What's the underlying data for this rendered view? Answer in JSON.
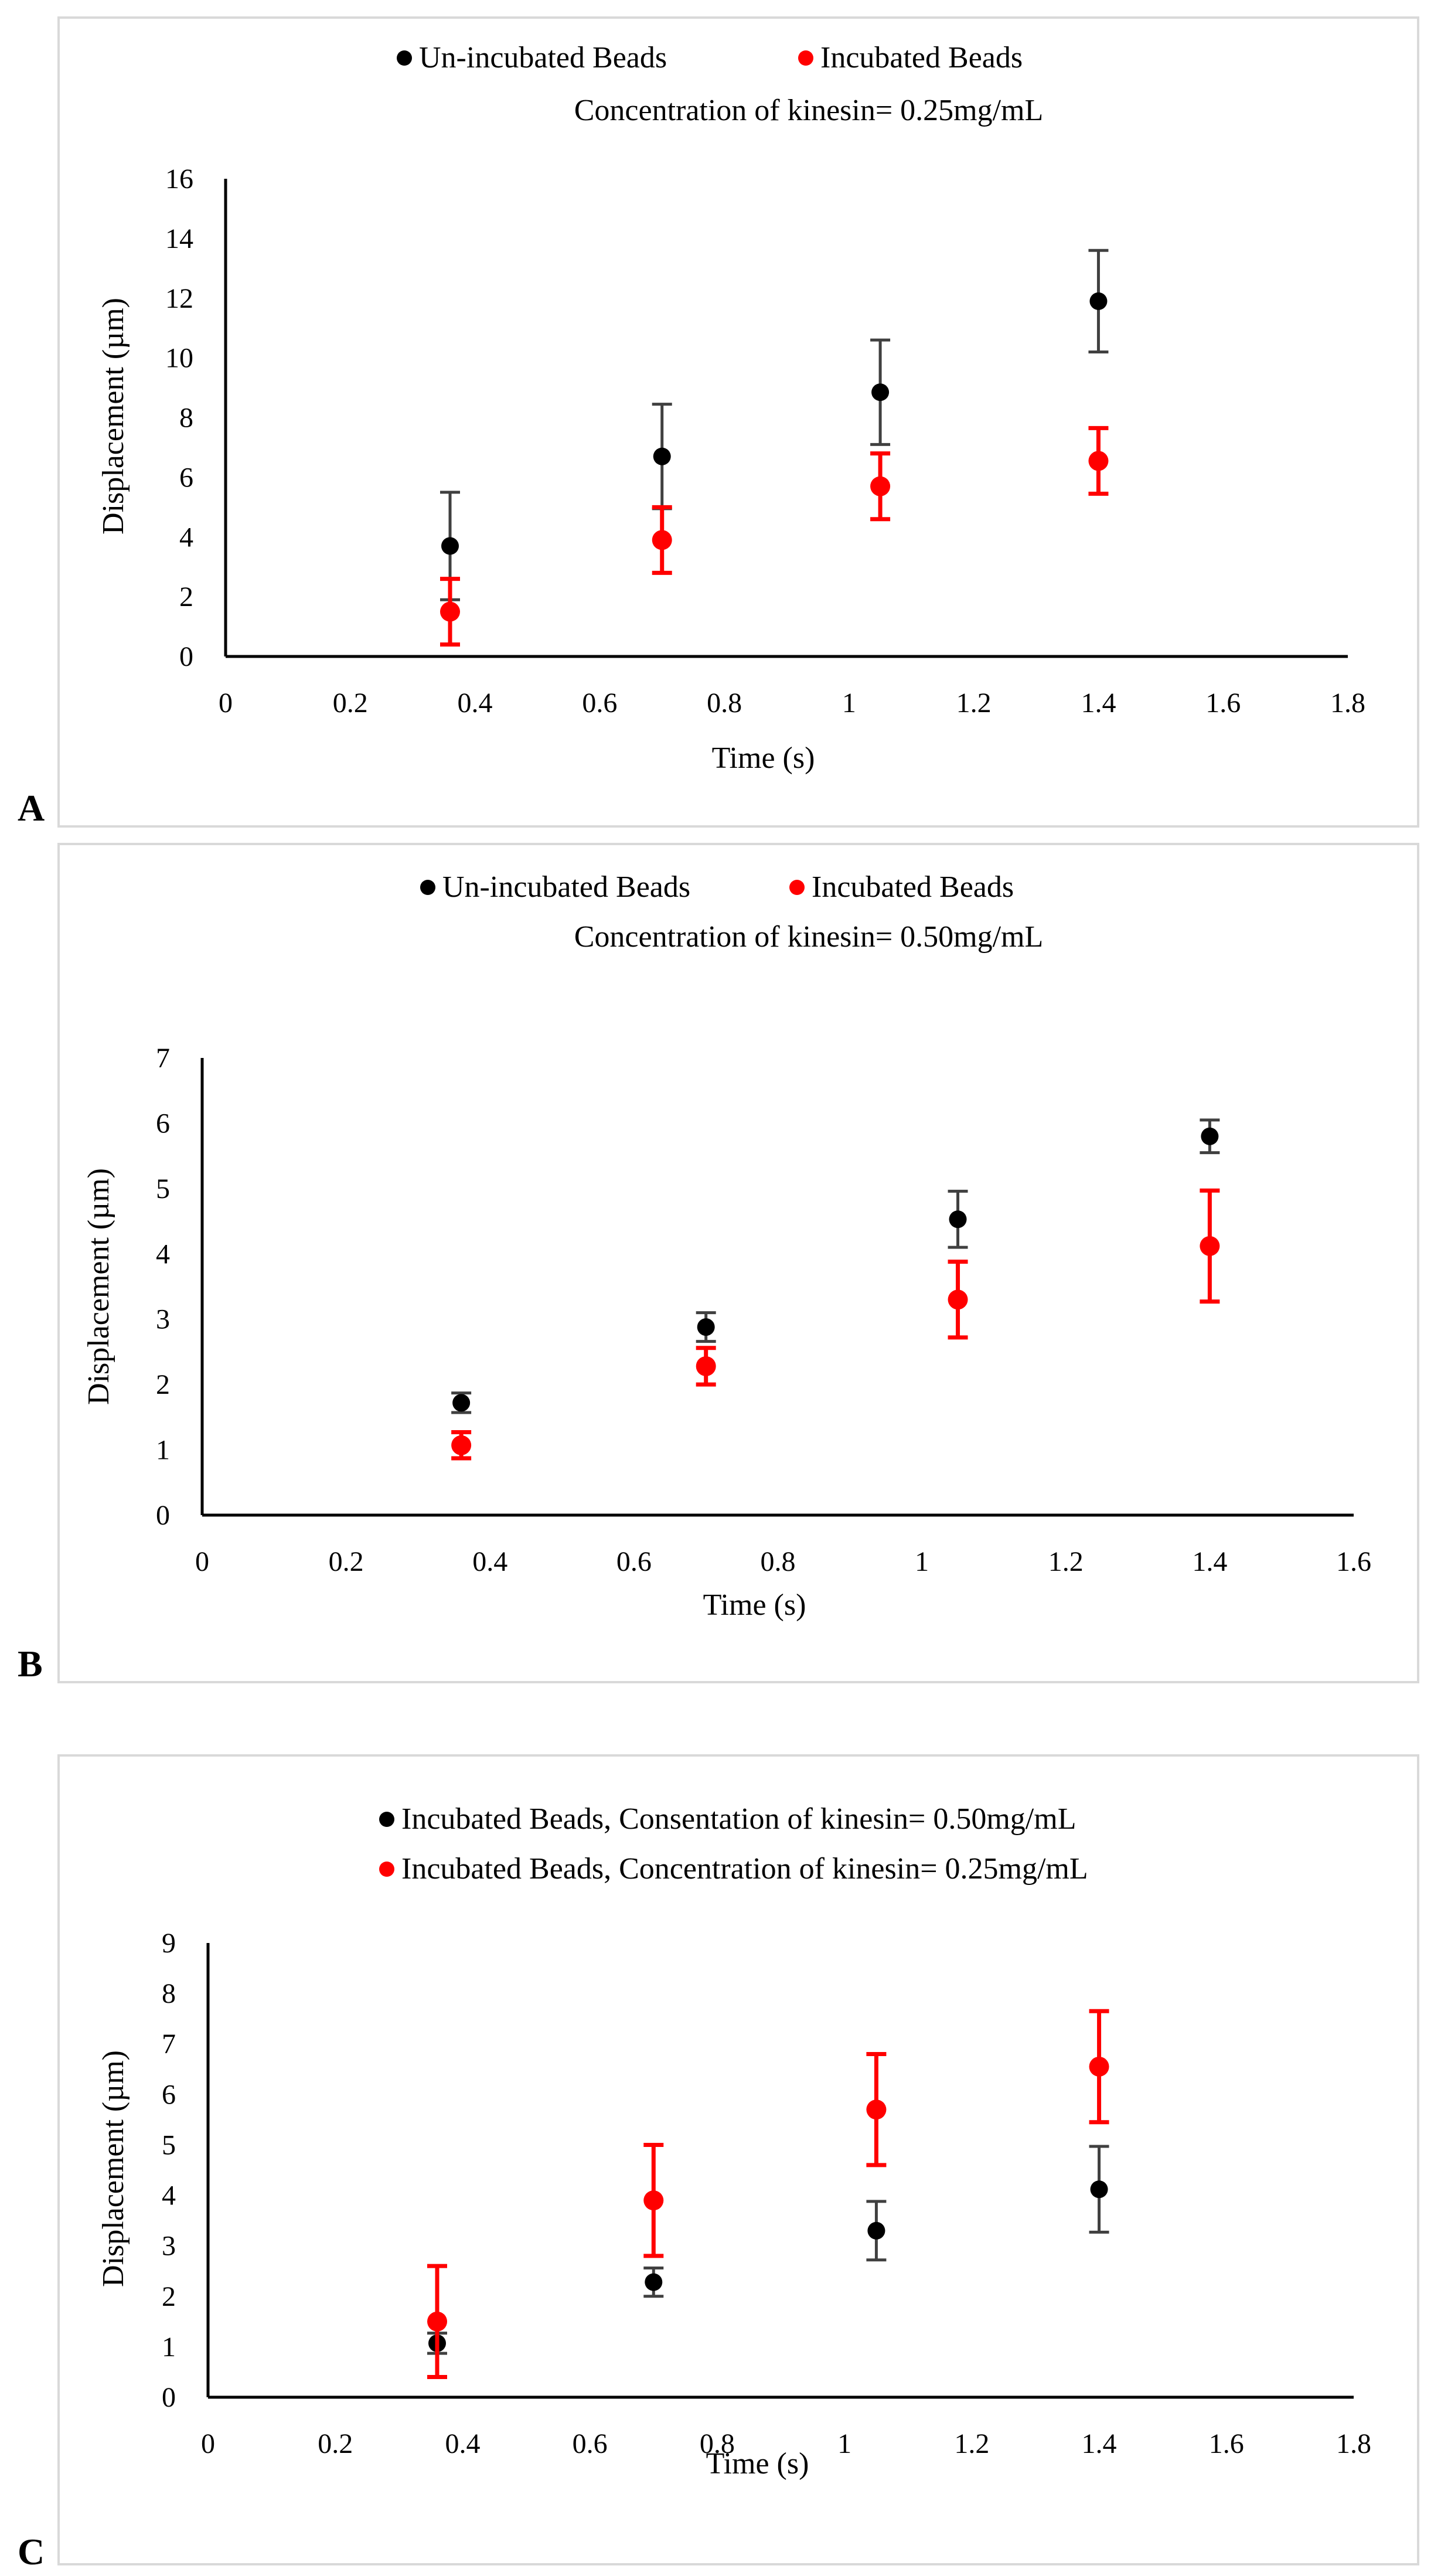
{
  "chart_data": [
    {
      "type": "scatter",
      "panel_label": "A",
      "legend_entries": [
        "Un-incubated  Beads",
        "Incubated Beads"
      ],
      "subtitle": "Concentration of kinesin= 0.25mg/mL",
      "xlabel": "Time (s)",
      "ylabel": "Displacement (µm)",
      "xlim": [
        0,
        1.8
      ],
      "ylim": [
        0,
        16
      ],
      "x_ticks": [
        "0",
        "0.2",
        "0.4",
        "0.6",
        "0.8",
        "1",
        "1.2",
        "1.4",
        "1.6",
        "1.8"
      ],
      "y_ticks": [
        "0",
        "2",
        "4",
        "6",
        "8",
        "10",
        "12",
        "14",
        "16"
      ],
      "grid": false,
      "series": [
        {
          "name": "Un-incubated  Beads",
          "color": "#000000",
          "points": [
            {
              "x": 0.36,
              "y": 3.7,
              "err": 1.8
            },
            {
              "x": 0.7,
              "y": 6.7,
              "err": 1.75
            },
            {
              "x": 1.05,
              "y": 8.85,
              "err": 1.75
            },
            {
              "x": 1.4,
              "y": 11.9,
              "err": 1.7
            }
          ]
        },
        {
          "name": "Incubated Beads",
          "color": "#ff0000",
          "points": [
            {
              "x": 0.36,
              "y": 1.5,
              "err": 1.1
            },
            {
              "x": 0.7,
              "y": 3.9,
              "err": 1.1
            },
            {
              "x": 1.05,
              "y": 5.7,
              "err": 1.1
            },
            {
              "x": 1.4,
              "y": 6.55,
              "err": 1.1
            }
          ]
        }
      ]
    },
    {
      "type": "scatter",
      "panel_label": "B",
      "legend_entries": [
        "Un-incubated Beads",
        "Incubated Beads"
      ],
      "subtitle": "Concentration of kinesin= 0.50mg/mL",
      "xlabel": "Time (s)",
      "ylabel": "Displacement (µm)",
      "xlim": [
        0,
        1.6
      ],
      "ylim": [
        0,
        7
      ],
      "x_ticks": [
        "0",
        "0.2",
        "0.4",
        "0.6",
        "0.8",
        "1",
        "1.2",
        "1.4",
        "1.6"
      ],
      "y_ticks": [
        "0",
        "1",
        "2",
        "3",
        "4",
        "5",
        "6",
        "7"
      ],
      "grid": false,
      "series": [
        {
          "name": "Un-incubated Beads",
          "color": "#000000",
          "points": [
            {
              "x": 0.36,
              "y": 1.72,
              "err": 0.15
            },
            {
              "x": 0.7,
              "y": 2.88,
              "err": 0.22
            },
            {
              "x": 1.05,
              "y": 4.53,
              "err": 0.43
            },
            {
              "x": 1.4,
              "y": 5.8,
              "err": 0.25
            }
          ]
        },
        {
          "name": "Incubated Beads",
          "color": "#ff0000",
          "points": [
            {
              "x": 0.36,
              "y": 1.07,
              "err": 0.2
            },
            {
              "x": 0.7,
              "y": 2.28,
              "err": 0.28
            },
            {
              "x": 1.05,
              "y": 3.3,
              "err": 0.58
            },
            {
              "x": 1.4,
              "y": 4.12,
              "err": 0.85
            }
          ]
        }
      ]
    },
    {
      "type": "scatter",
      "panel_label": "C",
      "legend_entries": [
        "Incubated Beads, Consentation of kinesin= 0.50mg/mL",
        "Incubated Beads, Concentration of kinesin= 0.25mg/mL"
      ],
      "subtitle": "",
      "xlabel": "Time (s)",
      "ylabel": "Displacement (µm)",
      "xlim": [
        0,
        1.8
      ],
      "ylim": [
        0,
        9
      ],
      "x_ticks": [
        "0",
        "0.2",
        "0.4",
        "0.6",
        "0.8",
        "1",
        "1.2",
        "1.4",
        "1.6",
        "1.8"
      ],
      "y_ticks": [
        "0",
        "1",
        "2",
        "3",
        "4",
        "5",
        "6",
        "7",
        "8",
        "9"
      ],
      "grid": false,
      "series": [
        {
          "name": "Incubated Beads, Consentation of kinesin= 0.50mg/mL",
          "color": "#000000",
          "points": [
            {
              "x": 0.36,
              "y": 1.07,
              "err": 0.2
            },
            {
              "x": 0.7,
              "y": 2.28,
              "err": 0.28
            },
            {
              "x": 1.05,
              "y": 3.3,
              "err": 0.58
            },
            {
              "x": 1.4,
              "y": 4.12,
              "err": 0.85
            }
          ]
        },
        {
          "name": "Incubated Beads, Concentration of kinesin= 0.25mg/mL",
          "color": "#ff0000",
          "points": [
            {
              "x": 0.36,
              "y": 1.5,
              "err": 1.1
            },
            {
              "x": 0.7,
              "y": 3.9,
              "err": 1.1
            },
            {
              "x": 1.05,
              "y": 5.7,
              "err": 1.1
            },
            {
              "x": 1.4,
              "y": 6.55,
              "err": 1.1
            }
          ]
        }
      ]
    }
  ]
}
